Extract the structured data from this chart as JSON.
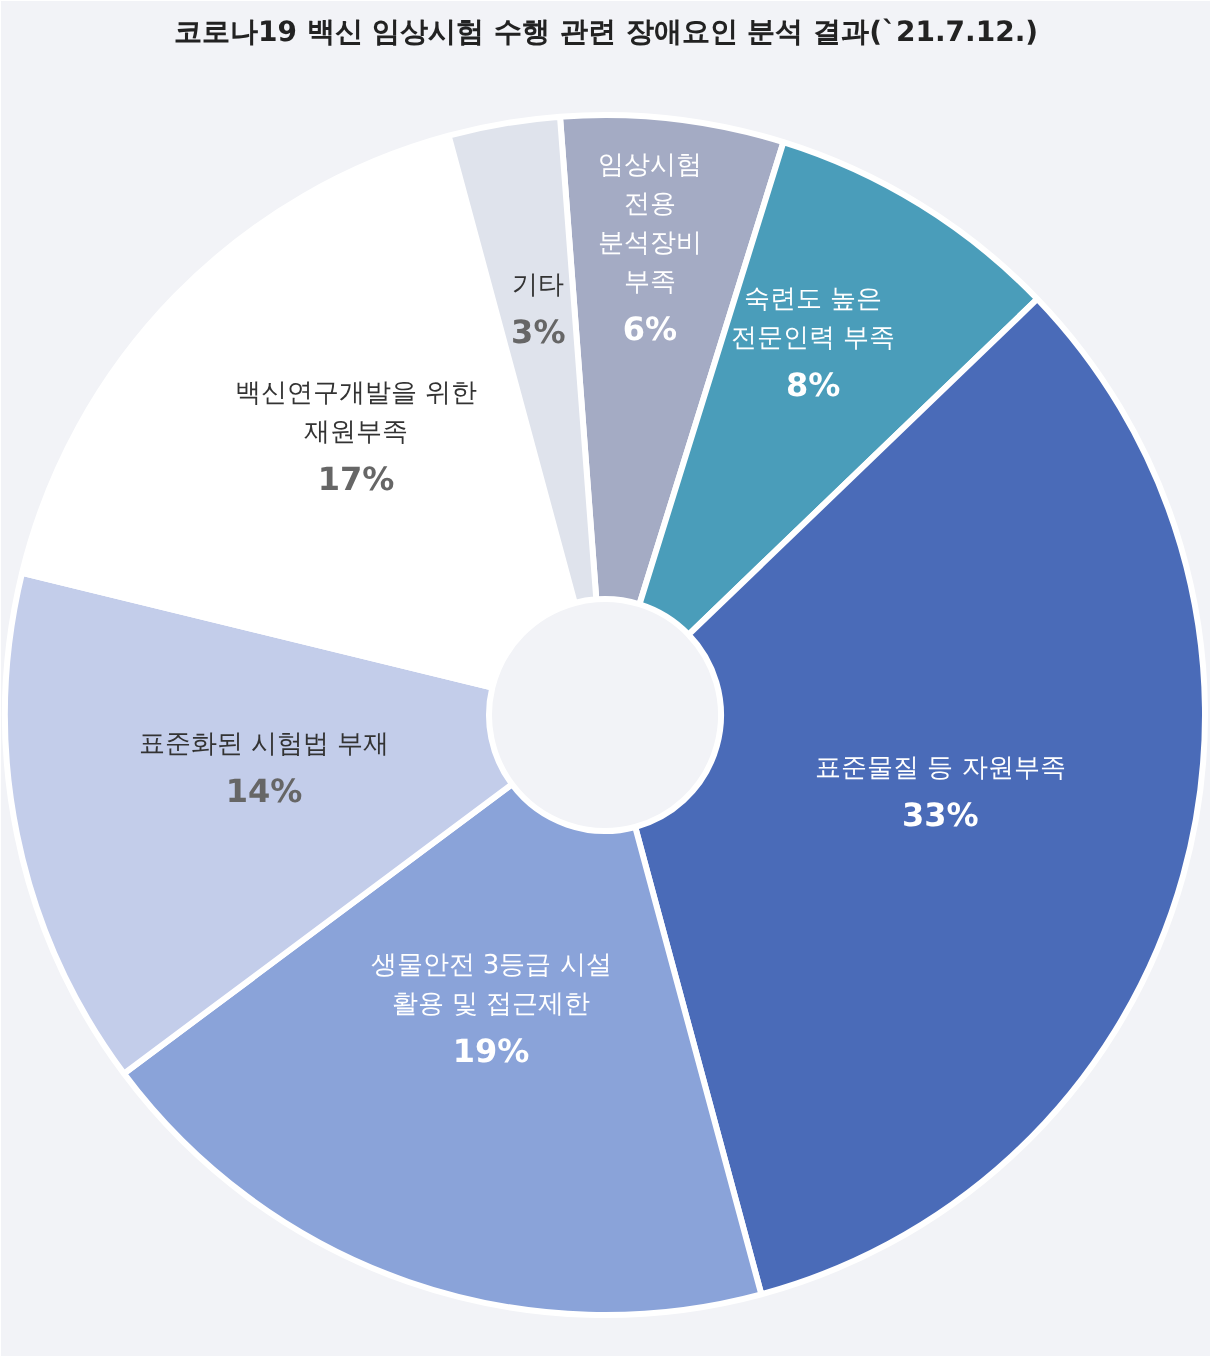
{
  "chart_data": {
    "type": "donut",
    "title": "코로나19 백신 임상시험 수행 관련 장애요인 분석 결과(`21.7.12.)",
    "categories": [
      "임상시험\n전용\n분석장비\n부족",
      "숙련도 높은\n전문인력 부족",
      "표준물질 등 자원부족",
      "생물안전 3등급 시설\n활용 및 접근제한",
      "표준화된 시험법 부재",
      "백신연구개발을 위한\n재원부족",
      "기타"
    ],
    "values": [
      6,
      8,
      33,
      19,
      14,
      17,
      3
    ],
    "colors": [
      "#a4abc4",
      "#4a9dba",
      "#4a6bb8",
      "#8aa3d9",
      "#c3cdea",
      "#ffffff",
      "#dfe3ec"
    ],
    "value_labels": [
      "6%",
      "8%",
      "33%",
      "19%",
      "14%",
      "17%",
      "3%"
    ]
  }
}
